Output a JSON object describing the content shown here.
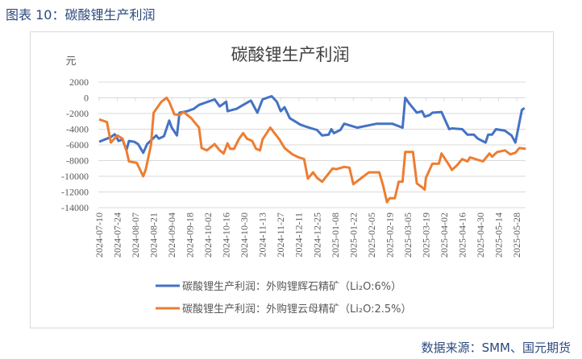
{
  "figure_title": "图表 10：碳酸锂生产利润",
  "source": "数据来源：SMM、国元期货",
  "chart_data": {
    "type": "line",
    "title": "碳酸锂生产利润",
    "ylabel": "元",
    "xlabel": "",
    "ylim": [
      -14000,
      2000
    ],
    "yticks": [
      2000,
      0,
      -2000,
      -4000,
      -6000,
      -8000,
      -10000,
      -12000,
      -14000
    ],
    "xticks": [
      "2024-07-10",
      "2024-07-24",
      "2024-08-07",
      "2024-08-21",
      "2024-09-04",
      "2024-09-18",
      "2024-10-02",
      "2024-10-16",
      "2024-10-30",
      "2024-11-13",
      "2024-11-27",
      "2024-12-11",
      "2024-12-25",
      "2025-01-08",
      "2025-01-22",
      "2025-02-05",
      "2025-02-19",
      "2025-03-05",
      "2025-03-19",
      "2025-04-02",
      "2025-04-16",
      "2025-04-30",
      "2025-05-14",
      "2025-05-28"
    ],
    "grid": true,
    "legend_position": "bottom",
    "colors": {
      "series1": "#4472C4",
      "series2": "#ED7D31"
    },
    "series": [
      {
        "name": "碳酸锂生产利润：外购锂辉石精矿（Li₂O:6%）",
        "color": "#4472C4",
        "points": [
          [
            "2024-07-10",
            -5600
          ],
          [
            "2024-07-19",
            -5000
          ],
          [
            "2024-07-22",
            -4650
          ],
          [
            "2024-07-25",
            -5500
          ],
          [
            "2024-07-28",
            -5300
          ],
          [
            "2024-07-31",
            -6700
          ],
          [
            "2024-08-02",
            -5500
          ],
          [
            "2024-08-06",
            -5600
          ],
          [
            "2024-08-09",
            -5900
          ],
          [
            "2024-08-13",
            -7000
          ],
          [
            "2024-08-16",
            -5900
          ],
          [
            "2024-08-23",
            -4800
          ],
          [
            "2024-08-25",
            -5200
          ],
          [
            "2024-08-29",
            -4900
          ],
          [
            "2024-09-02",
            -2900
          ],
          [
            "2024-09-04",
            -3800
          ],
          [
            "2024-09-08",
            -4800
          ],
          [
            "2024-09-10",
            -1900
          ],
          [
            "2024-09-16",
            -1700
          ],
          [
            "2024-09-21",
            -1400
          ],
          [
            "2024-09-25",
            -900
          ],
          [
            "2024-10-07",
            -200
          ],
          [
            "2024-10-11",
            -1100
          ],
          [
            "2024-10-16",
            -500
          ],
          [
            "2024-10-17",
            -1700
          ],
          [
            "2024-10-24",
            -1400
          ],
          [
            "2024-10-28",
            -1000
          ],
          [
            "2024-11-04",
            -350
          ],
          [
            "2024-11-09",
            -1900
          ],
          [
            "2024-11-13",
            -200
          ],
          [
            "2024-11-20",
            200
          ],
          [
            "2024-11-24",
            -500
          ],
          [
            "2024-11-27",
            -1700
          ],
          [
            "2024-11-30",
            -1200
          ],
          [
            "2024-12-04",
            -2600
          ],
          [
            "2024-12-09",
            -3100
          ],
          [
            "2024-12-12",
            -3400
          ],
          [
            "2024-12-17",
            -3700
          ],
          [
            "2024-12-25",
            -4100
          ],
          [
            "2024-12-29",
            -4800
          ],
          [
            "2025-01-03",
            -4700
          ],
          [
            "2025-01-05",
            -4000
          ],
          [
            "2025-01-07",
            -4500
          ],
          [
            "2025-01-12",
            -4100
          ],
          [
            "2025-01-15",
            -3300
          ],
          [
            "2025-01-25",
            -3800
          ],
          [
            "2025-02-09",
            -3300
          ],
          [
            "2025-02-21",
            -3300
          ],
          [
            "2025-03-01",
            -3800
          ],
          [
            "2025-03-03",
            0
          ],
          [
            "2025-03-06",
            -700
          ],
          [
            "2025-03-12",
            -1900
          ],
          [
            "2025-03-16",
            -1700
          ],
          [
            "2025-03-18",
            -2400
          ],
          [
            "2025-03-22",
            -2200
          ],
          [
            "2025-03-24",
            -1900
          ],
          [
            "2025-03-31",
            -1800
          ],
          [
            "2025-04-06",
            -4000
          ],
          [
            "2025-04-08",
            -3900
          ],
          [
            "2025-04-16",
            -4000
          ],
          [
            "2025-04-20",
            -4700
          ],
          [
            "2025-04-25",
            -4700
          ],
          [
            "2025-04-28",
            -5200
          ],
          [
            "2025-05-04",
            -5700
          ],
          [
            "2025-05-06",
            -4700
          ],
          [
            "2025-05-09",
            -4700
          ],
          [
            "2025-05-12",
            -4000
          ],
          [
            "2025-05-19",
            -4200
          ],
          [
            "2025-05-24",
            -4800
          ],
          [
            "2025-05-27",
            -5700
          ],
          [
            "2025-06-01",
            -1550
          ],
          [
            "2025-06-03",
            -1300
          ]
        ]
      },
      {
        "name": "碳酸锂生产利润：外购锂云母精矿（Li₂O:2.5%）",
        "color": "#ED7D31",
        "points": [
          [
            "2024-07-10",
            -2750
          ],
          [
            "2024-07-16",
            -3100
          ],
          [
            "2024-07-19",
            -5700
          ],
          [
            "2024-07-24",
            -4800
          ],
          [
            "2024-07-28",
            -5200
          ],
          [
            "2024-07-31",
            -6700
          ],
          [
            "2024-08-02",
            -8100
          ],
          [
            "2024-08-08",
            -8300
          ],
          [
            "2024-08-13",
            -10000
          ],
          [
            "2024-08-15",
            -9100
          ],
          [
            "2024-08-19",
            -6000
          ],
          [
            "2024-08-21",
            -1900
          ],
          [
            "2024-08-27",
            -500
          ],
          [
            "2024-08-31",
            0
          ],
          [
            "2024-09-02",
            -500
          ],
          [
            "2024-09-06",
            -2100
          ],
          [
            "2024-09-10",
            -2200
          ],
          [
            "2024-09-13",
            -1800
          ],
          [
            "2024-09-19",
            -2600
          ],
          [
            "2024-09-25",
            -3800
          ],
          [
            "2024-09-27",
            -6400
          ],
          [
            "2024-10-01",
            -6700
          ],
          [
            "2024-10-07",
            -5900
          ],
          [
            "2024-10-11",
            -6700
          ],
          [
            "2024-10-14",
            -7100
          ],
          [
            "2024-10-17",
            -5800
          ],
          [
            "2024-10-19",
            -6500
          ],
          [
            "2024-10-22",
            -6500
          ],
          [
            "2024-10-26",
            -5200
          ],
          [
            "2024-10-29",
            -4500
          ],
          [
            "2024-11-01",
            -5200
          ],
          [
            "2024-11-05",
            -5500
          ],
          [
            "2024-11-08",
            -6500
          ],
          [
            "2024-11-11",
            -6700
          ],
          [
            "2024-11-13",
            -5300
          ],
          [
            "2024-11-19",
            -3800
          ],
          [
            "2024-11-26",
            -5300
          ],
          [
            "2024-11-30",
            -6400
          ],
          [
            "2024-12-06",
            -7200
          ],
          [
            "2024-12-11",
            -7600
          ],
          [
            "2024-12-15",
            -7800
          ],
          [
            "2024-12-18",
            -10300
          ],
          [
            "2024-12-22",
            -9500
          ],
          [
            "2024-12-25",
            -10200
          ],
          [
            "2024-12-29",
            -10700
          ],
          [
            "2025-01-06",
            -9000
          ],
          [
            "2025-01-09",
            -9100
          ],
          [
            "2025-01-15",
            -8800
          ],
          [
            "2025-01-19",
            -8900
          ],
          [
            "2025-01-22",
            -11000
          ],
          [
            "2025-02-03",
            -9500
          ],
          [
            "2025-02-11",
            -9500
          ],
          [
            "2025-02-14",
            -11200
          ],
          [
            "2025-02-17",
            -13300
          ],
          [
            "2025-02-19",
            -12800
          ],
          [
            "2025-02-23",
            -12800
          ],
          [
            "2025-02-26",
            -10700
          ],
          [
            "2025-03-01",
            -10700
          ],
          [
            "2025-03-03",
            -6900
          ],
          [
            "2025-03-09",
            -6900
          ],
          [
            "2025-03-12",
            -10900
          ],
          [
            "2025-03-16",
            -11400
          ],
          [
            "2025-03-18",
            -11700
          ],
          [
            "2025-03-19",
            -10200
          ],
          [
            "2025-03-24",
            -8400
          ],
          [
            "2025-03-29",
            -8400
          ],
          [
            "2025-03-31",
            -7100
          ],
          [
            "2025-04-06",
            -8600
          ],
          [
            "2025-04-08",
            -9200
          ],
          [
            "2025-04-12",
            -8600
          ],
          [
            "2025-04-16",
            -7800
          ],
          [
            "2025-04-20",
            -8100
          ],
          [
            "2025-04-22",
            -7600
          ],
          [
            "2025-05-02",
            -8100
          ],
          [
            "2025-05-07",
            -7100
          ],
          [
            "2025-05-09",
            -7500
          ],
          [
            "2025-05-13",
            -6900
          ],
          [
            "2025-05-19",
            -6700
          ],
          [
            "2025-05-23",
            -7200
          ],
          [
            "2025-05-27",
            -7000
          ],
          [
            "2025-05-30",
            -6400
          ],
          [
            "2025-06-04",
            -6500
          ]
        ]
      }
    ]
  }
}
